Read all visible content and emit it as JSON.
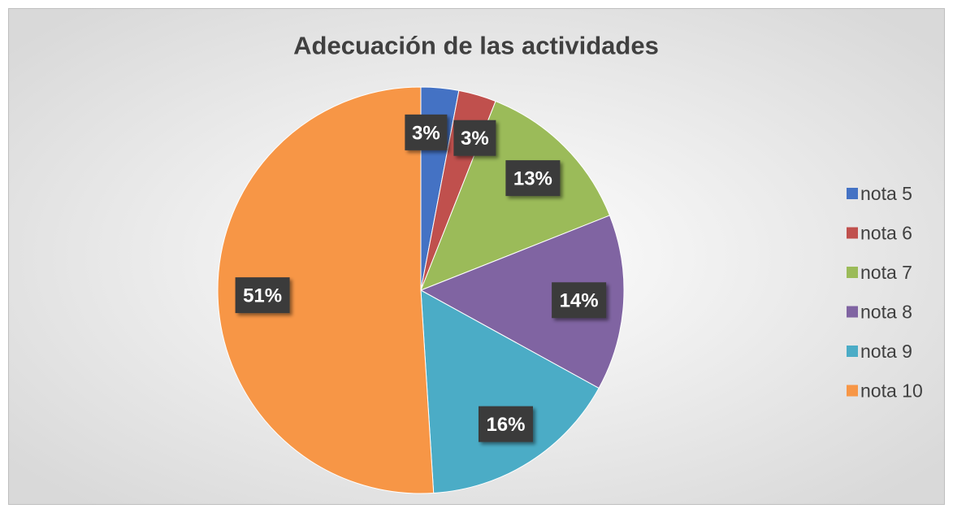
{
  "chart_data": {
    "type": "pie",
    "title": "Adecuación de las actividades",
    "categories": [
      "nota 5",
      "nota 6",
      "nota 7",
      "nota 8",
      "nota 9",
      "nota 10"
    ],
    "values": [
      3,
      3,
      13,
      14,
      16,
      51
    ],
    "value_labels": [
      "3%",
      "3%",
      "13%",
      "14%",
      "16%",
      "51%"
    ],
    "colors": [
      "#4472c4",
      "#c0504d",
      "#9bbb59",
      "#8064a2",
      "#4bacc6",
      "#f79646"
    ],
    "legend": "right"
  }
}
